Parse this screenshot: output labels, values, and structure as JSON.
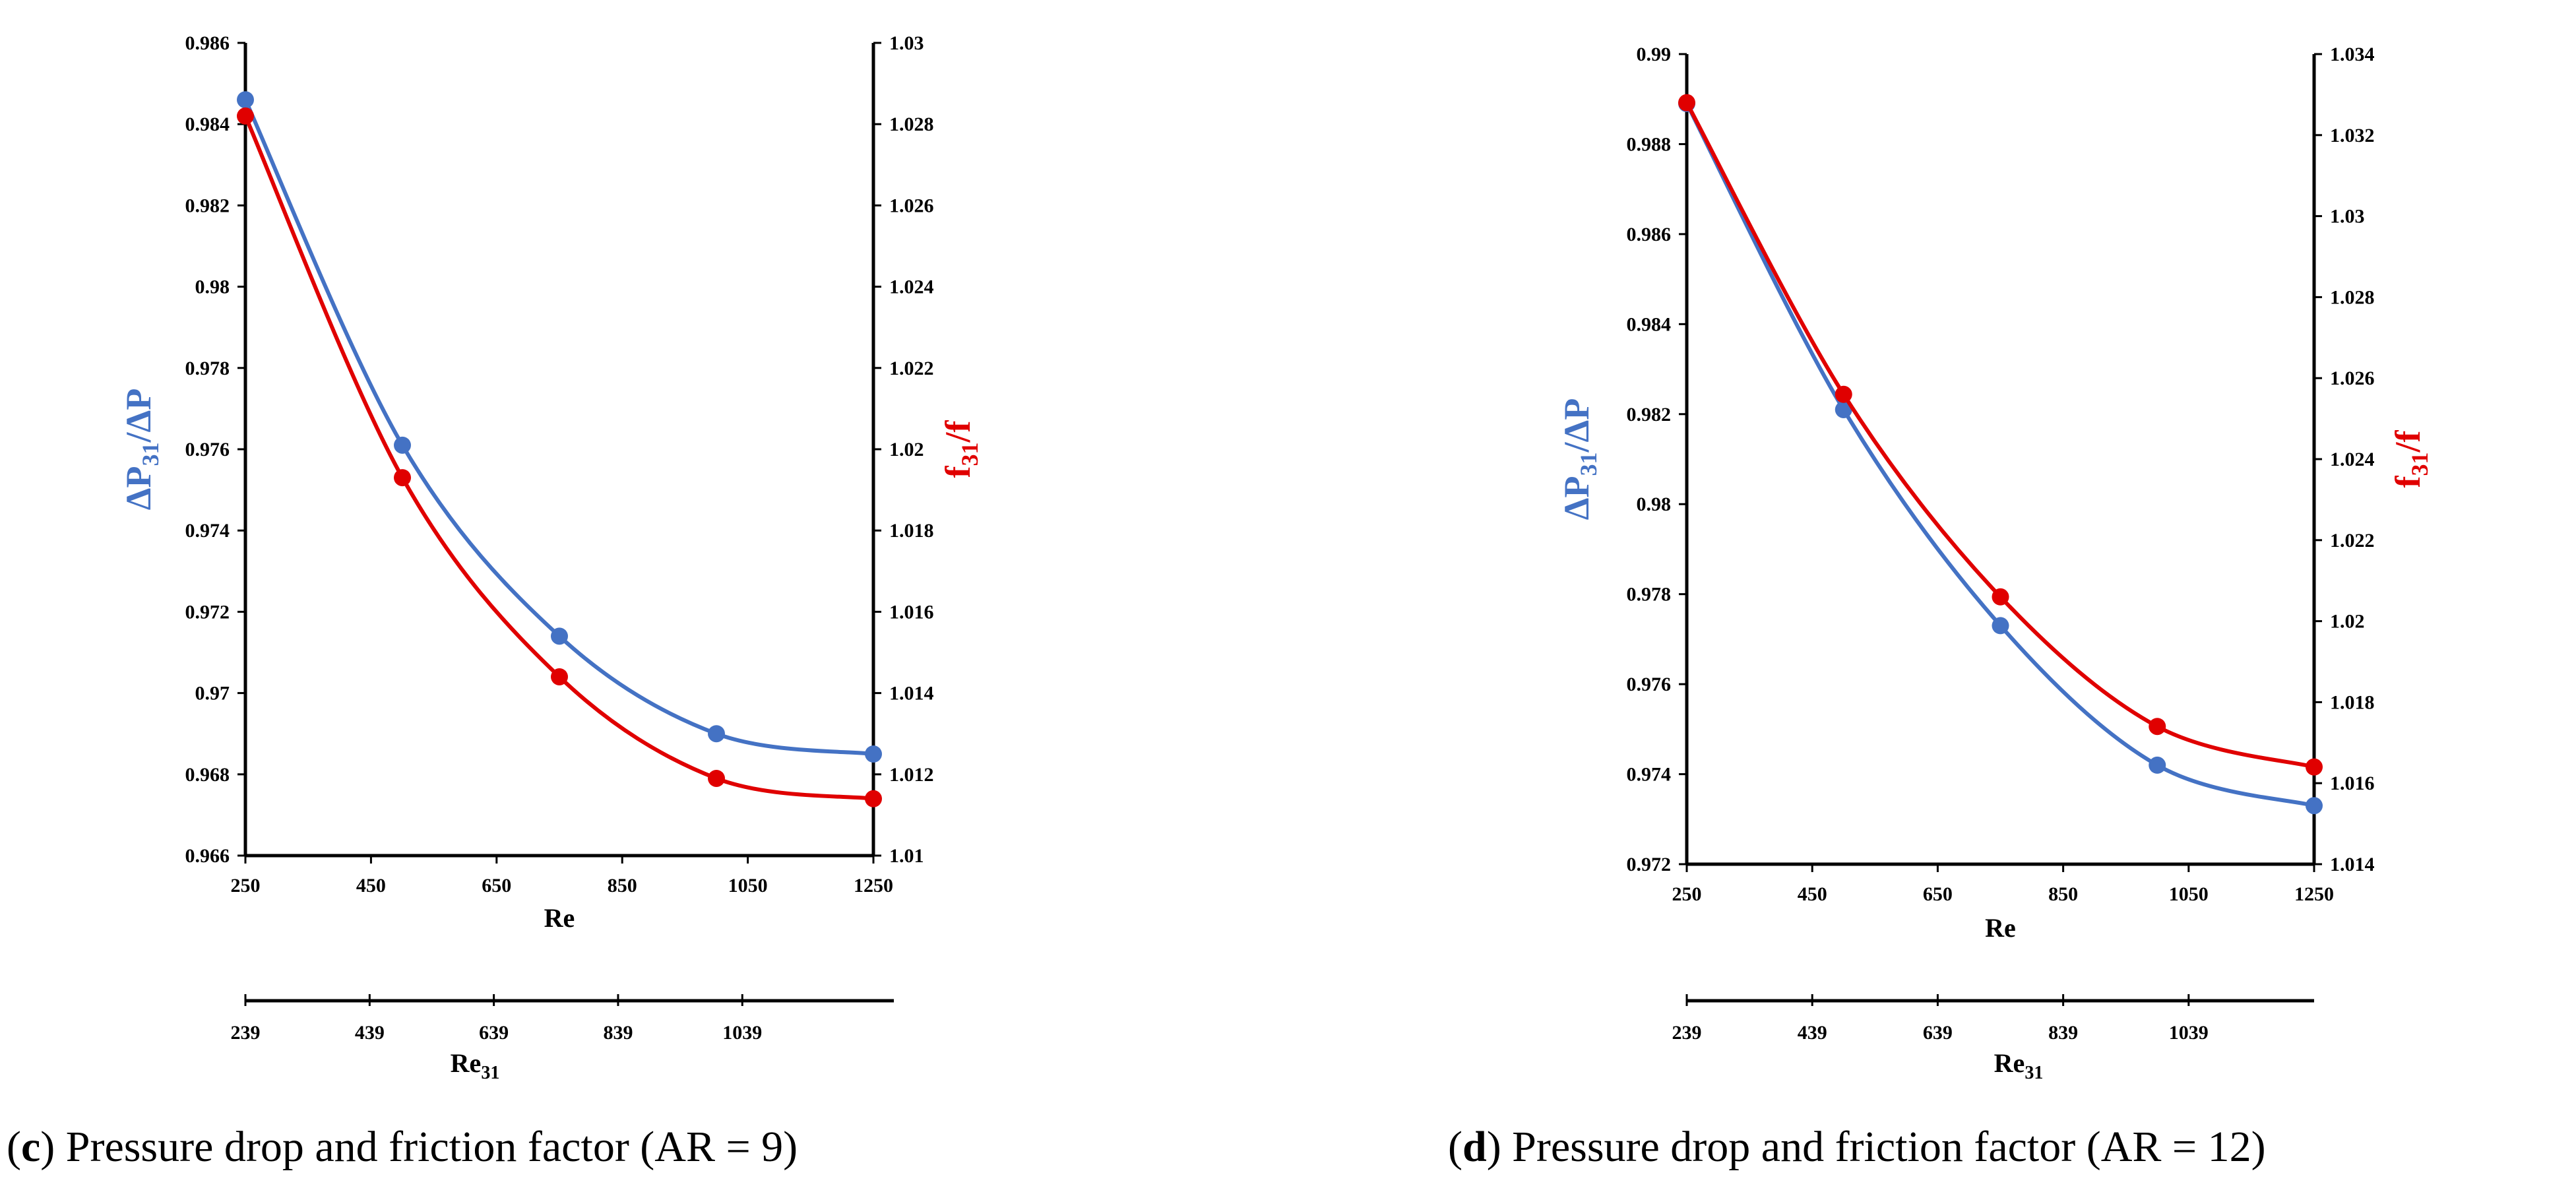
{
  "chart_data": [
    {
      "type": "line",
      "caption": {
        "letter": "c",
        "text": ") Pressure drop and friction factor (AR = 9)"
      },
      "xlabel": "Re",
      "xlim": [
        250,
        1250
      ],
      "x_ticks": [
        "250",
        "450",
        "650",
        "850",
        "1050",
        "1250"
      ],
      "x2label_main": "Re",
      "x2label_sub": "31",
      "x2_ticks": [
        "239",
        "439",
        "639",
        "839",
        "1039"
      ],
      "x2_range": [
        239,
        1283
      ],
      "ylabel_left": {
        "main": "ΔP",
        "sub": "31",
        "rest": "/ΔP"
      },
      "ylim_left": [
        0.966,
        0.986
      ],
      "y_ticks_left": [
        "0.986",
        "0.984",
        "0.982",
        "0.98",
        "0.978",
        "0.976",
        "0.974",
        "0.972",
        "0.97",
        "0.968",
        "0.966"
      ],
      "ylabel_right": {
        "main": "f",
        "sub": "31",
        "rest": "/f"
      },
      "ylim_right": [
        1.01,
        1.03
      ],
      "y_ticks_right": [
        "1.03",
        "1.028",
        "1.026",
        "1.024",
        "1.022",
        "1.02",
        "1.018",
        "1.016",
        "1.014",
        "1.012",
        "1.01"
      ],
      "series": [
        {
          "name": "ΔP31/ΔP",
          "axis": "left",
          "color": "#4472C4",
          "x": [
            250,
            500,
            750,
            1000,
            1250
          ],
          "values": [
            0.9846,
            0.9761,
            0.9714,
            0.969,
            0.9685
          ]
        },
        {
          "name": "f31/f",
          "axis": "right",
          "color": "#E00000",
          "x": [
            250,
            500,
            750,
            1000,
            1250
          ],
          "values": [
            1.0282,
            1.0193,
            1.0144,
            1.0119,
            1.0114
          ]
        }
      ]
    },
    {
      "type": "line",
      "caption": {
        "letter": "d",
        "text": ") Pressure drop and friction factor (AR = 12)"
      },
      "xlabel": "Re",
      "xlim": [
        250,
        1250
      ],
      "x_ticks": [
        "250",
        "450",
        "650",
        "850",
        "1050",
        "1250"
      ],
      "x2label_main": "Re",
      "x2label_sub": "31",
      "x2_ticks": [
        "239",
        "439",
        "639",
        "839",
        "1039"
      ],
      "x2_range": [
        239,
        1239
      ],
      "ylabel_left": {
        "main": "ΔP",
        "sub": "31",
        "rest": "/ΔP"
      },
      "ylim_left": [
        0.972,
        0.99
      ],
      "y_ticks_left": [
        "0.99",
        "0.988",
        "0.986",
        "0.984",
        "0.982",
        "0.98",
        "0.978",
        "0.976",
        "0.974",
        "0.972"
      ],
      "ylabel_right": {
        "main": "f",
        "sub": "31",
        "rest": "/f"
      },
      "ylim_right": [
        1.014,
        1.034
      ],
      "y_ticks_right": [
        "1.034",
        "1.032",
        "1.03",
        "1.028",
        "1.026",
        "1.024",
        "1.022",
        "1.02",
        "1.018",
        "1.016",
        "1.014"
      ],
      "series": [
        {
          "name": "ΔP31/ΔP",
          "axis": "left",
          "color": "#4472C4",
          "x": [
            250,
            500,
            750,
            1000,
            1250
          ],
          "values": [
            0.9889,
            0.9821,
            0.9773,
            0.9742,
            0.9733
          ]
        },
        {
          "name": "f31/f",
          "axis": "right",
          "color": "#E00000",
          "x": [
            250,
            500,
            750,
            1000,
            1250
          ],
          "values": [
            1.0328,
            1.0256,
            1.0206,
            1.0174,
            1.0164
          ]
        }
      ]
    }
  ]
}
